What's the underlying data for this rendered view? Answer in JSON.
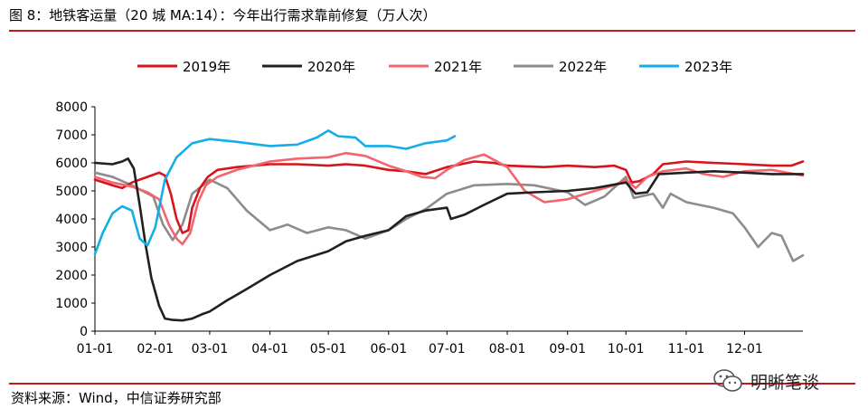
{
  "title": "图 8：地铁客运量（20 城 MA:14）：今年出行需求靠前修复（万人次）",
  "source": "资料来源：Wind，中信证券研究部",
  "watermark": {
    "text": "明晰笔谈",
    "icon": "wechat-icon"
  },
  "chart_data": {
    "type": "line",
    "title": "",
    "xlabel": "",
    "ylabel": "",
    "x_domain": [
      "01-01",
      "12-31"
    ],
    "xticks": [
      "01-01",
      "02-01",
      "03-01",
      "04-01",
      "05-01",
      "06-01",
      "07-01",
      "08-01",
      "09-01",
      "10-01",
      "11-01",
      "12-01"
    ],
    "ylim": [
      0,
      8000
    ],
    "yticks": [
      0,
      1000,
      2000,
      3000,
      4000,
      5000,
      6000,
      7000,
      8000
    ],
    "grid": false,
    "legend_position": "top",
    "series": [
      {
        "name": "2019年",
        "color": "#d7131c",
        "points": [
          [
            "01-01",
            5400
          ],
          [
            "01-10",
            5200
          ],
          [
            "01-15",
            5100
          ],
          [
            "01-20",
            5300
          ],
          [
            "01-28",
            5500
          ],
          [
            "02-03",
            5650
          ],
          [
            "02-06",
            5550
          ],
          [
            "02-09",
            4900
          ],
          [
            "02-12",
            4000
          ],
          [
            "02-15",
            3500
          ],
          [
            "02-18",
            3600
          ],
          [
            "02-20",
            4400
          ],
          [
            "02-24",
            5100
          ],
          [
            "02-28",
            5500
          ],
          [
            "03-05",
            5750
          ],
          [
            "03-15",
            5850
          ],
          [
            "04-01",
            5950
          ],
          [
            "04-15",
            5950
          ],
          [
            "05-01",
            5900
          ],
          [
            "05-10",
            5950
          ],
          [
            "05-20",
            5900
          ],
          [
            "06-01",
            5750
          ],
          [
            "06-10",
            5700
          ],
          [
            "06-20",
            5600
          ],
          [
            "07-01",
            5850
          ],
          [
            "07-15",
            6050
          ],
          [
            "07-25",
            6000
          ],
          [
            "08-01",
            5900
          ],
          [
            "08-20",
            5850
          ],
          [
            "09-01",
            5900
          ],
          [
            "09-15",
            5850
          ],
          [
            "09-25",
            5900
          ],
          [
            "10-01",
            5750
          ],
          [
            "10-04",
            5300
          ],
          [
            "10-08",
            5350
          ],
          [
            "10-15",
            5600
          ],
          [
            "10-20",
            5950
          ],
          [
            "11-01",
            6050
          ],
          [
            "11-15",
            6000
          ],
          [
            "12-01",
            5950
          ],
          [
            "12-15",
            5900
          ],
          [
            "12-25",
            5900
          ],
          [
            "12-31",
            6050
          ]
        ]
      },
      {
        "name": "2020年",
        "color": "#231f20",
        "points": [
          [
            "01-01",
            6000
          ],
          [
            "01-10",
            5950
          ],
          [
            "01-15",
            6050
          ],
          [
            "01-18",
            6150
          ],
          [
            "01-21",
            5800
          ],
          [
            "01-24",
            4500
          ],
          [
            "01-27",
            3100
          ],
          [
            "01-30",
            1900
          ],
          [
            "02-03",
            900
          ],
          [
            "02-06",
            450
          ],
          [
            "02-10",
            400
          ],
          [
            "02-15",
            380
          ],
          [
            "02-20",
            450
          ],
          [
            "02-25",
            600
          ],
          [
            "03-01",
            700
          ],
          [
            "03-10",
            1100
          ],
          [
            "03-20",
            1500
          ],
          [
            "04-01",
            2000
          ],
          [
            "04-15",
            2500
          ],
          [
            "05-01",
            2850
          ],
          [
            "05-10",
            3200
          ],
          [
            "05-20",
            3400
          ],
          [
            "06-01",
            3600
          ],
          [
            "06-10",
            4100
          ],
          [
            "06-20",
            4300
          ],
          [
            "07-01",
            4400
          ],
          [
            "07-03",
            4000
          ],
          [
            "07-10",
            4150
          ],
          [
            "07-20",
            4500
          ],
          [
            "08-01",
            4900
          ],
          [
            "08-15",
            4950
          ],
          [
            "09-01",
            5000
          ],
          [
            "09-15",
            5100
          ],
          [
            "10-01",
            5300
          ],
          [
            "10-06",
            4900
          ],
          [
            "10-12",
            4950
          ],
          [
            "10-18",
            5600
          ],
          [
            "11-01",
            5650
          ],
          [
            "11-15",
            5700
          ],
          [
            "12-01",
            5650
          ],
          [
            "12-15",
            5600
          ],
          [
            "12-31",
            5600
          ]
        ]
      },
      {
        "name": "2021年",
        "color": "#f4646e",
        "points": [
          [
            "01-01",
            5500
          ],
          [
            "01-10",
            5300
          ],
          [
            "01-20",
            5150
          ],
          [
            "01-28",
            4950
          ],
          [
            "02-03",
            4700
          ],
          [
            "02-08",
            3800
          ],
          [
            "02-12",
            3300
          ],
          [
            "02-15",
            3100
          ],
          [
            "02-19",
            3500
          ],
          [
            "02-23",
            4600
          ],
          [
            "02-27",
            5200
          ],
          [
            "03-05",
            5500
          ],
          [
            "03-15",
            5750
          ],
          [
            "04-01",
            6050
          ],
          [
            "04-15",
            6150
          ],
          [
            "05-01",
            6200
          ],
          [
            "05-10",
            6350
          ],
          [
            "05-20",
            6250
          ],
          [
            "06-01",
            5900
          ],
          [
            "06-10",
            5700
          ],
          [
            "06-18",
            5500
          ],
          [
            "06-25",
            5450
          ],
          [
            "07-01",
            5750
          ],
          [
            "07-10",
            6100
          ],
          [
            "07-20",
            6300
          ],
          [
            "08-01",
            5850
          ],
          [
            "08-10",
            5000
          ],
          [
            "08-20",
            4600
          ],
          [
            "09-01",
            4700
          ],
          [
            "09-15",
            5000
          ],
          [
            "09-25",
            5200
          ],
          [
            "10-01",
            5400
          ],
          [
            "10-06",
            5100
          ],
          [
            "10-12",
            5500
          ],
          [
            "10-20",
            5700
          ],
          [
            "11-01",
            5800
          ],
          [
            "11-10",
            5600
          ],
          [
            "11-20",
            5500
          ],
          [
            "12-01",
            5700
          ],
          [
            "12-15",
            5750
          ],
          [
            "12-31",
            5550
          ]
        ]
      },
      {
        "name": "2022年",
        "color": "#8c8c8c",
        "points": [
          [
            "01-01",
            5650
          ],
          [
            "01-10",
            5500
          ],
          [
            "01-20",
            5200
          ],
          [
            "01-31",
            4800
          ],
          [
            "02-05",
            3800
          ],
          [
            "02-10",
            3250
          ],
          [
            "02-15",
            3800
          ],
          [
            "02-20",
            4900
          ],
          [
            "03-01",
            5400
          ],
          [
            "03-10",
            5100
          ],
          [
            "03-20",
            4300
          ],
          [
            "04-01",
            3600
          ],
          [
            "04-10",
            3800
          ],
          [
            "04-20",
            3500
          ],
          [
            "05-01",
            3700
          ],
          [
            "05-10",
            3600
          ],
          [
            "05-20",
            3300
          ],
          [
            "06-01",
            3600
          ],
          [
            "06-10",
            4000
          ],
          [
            "06-20",
            4350
          ],
          [
            "07-01",
            4900
          ],
          [
            "07-15",
            5200
          ],
          [
            "08-01",
            5250
          ],
          [
            "08-15",
            5200
          ],
          [
            "09-01",
            4950
          ],
          [
            "09-10",
            4500
          ],
          [
            "09-20",
            4800
          ],
          [
            "10-01",
            5500
          ],
          [
            "10-05",
            4750
          ],
          [
            "10-15",
            4900
          ],
          [
            "10-20",
            4400
          ],
          [
            "10-24",
            4900
          ],
          [
            "11-01",
            4600
          ],
          [
            "11-15",
            4400
          ],
          [
            "11-25",
            4200
          ],
          [
            "12-01",
            3700
          ],
          [
            "12-08",
            3000
          ],
          [
            "12-15",
            3500
          ],
          [
            "12-20",
            3400
          ],
          [
            "12-26",
            2500
          ],
          [
            "12-31",
            2700
          ]
        ]
      },
      {
        "name": "2023年",
        "color": "#12aee9",
        "points": [
          [
            "01-01",
            2750
          ],
          [
            "01-05",
            3500
          ],
          [
            "01-10",
            4200
          ],
          [
            "01-15",
            4450
          ],
          [
            "01-20",
            4300
          ],
          [
            "01-24",
            3300
          ],
          [
            "01-28",
            3050
          ],
          [
            "02-01",
            3700
          ],
          [
            "02-06",
            5400
          ],
          [
            "02-12",
            6200
          ],
          [
            "02-20",
            6700
          ],
          [
            "03-01",
            6850
          ],
          [
            "03-15",
            6750
          ],
          [
            "04-01",
            6600
          ],
          [
            "04-15",
            6650
          ],
          [
            "04-25",
            6900
          ],
          [
            "05-01",
            7150
          ],
          [
            "05-06",
            6950
          ],
          [
            "05-15",
            6900
          ],
          [
            "05-20",
            6600
          ],
          [
            "06-01",
            6600
          ],
          [
            "06-10",
            6500
          ],
          [
            "06-20",
            6700
          ],
          [
            "07-01",
            6800
          ],
          [
            "07-05",
            6950
          ]
        ]
      }
    ]
  }
}
